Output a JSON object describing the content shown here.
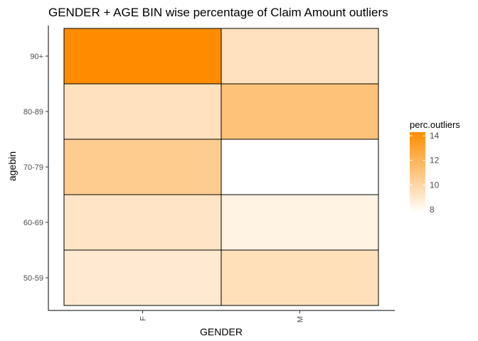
{
  "chart_data": {
    "type": "heatmap",
    "title": "GENDER + AGE BIN wise percentage of Claim Amount outliers",
    "xlabel": "GENDER",
    "ylabel": "agebin",
    "x_categories": [
      "F",
      "M"
    ],
    "y_categories": [
      "50-59",
      "60-69",
      "70-79",
      "80-89",
      "90+"
    ],
    "cells": [
      {
        "x": "F",
        "y": "50-59",
        "value": 8.9
      },
      {
        "x": "M",
        "y": "50-59",
        "value": 9.5
      },
      {
        "x": "F",
        "y": "60-69",
        "value": 9.2
      },
      {
        "x": "M",
        "y": "60-69",
        "value": 8.4
      },
      {
        "x": "F",
        "y": "70-79",
        "value": 10.6
      },
      {
        "x": "M",
        "y": "70-79",
        "value": 7.7
      },
      {
        "x": "F",
        "y": "80-89",
        "value": 9.4
      },
      {
        "x": "M",
        "y": "80-89",
        "value": 11.2
      },
      {
        "x": "F",
        "y": "90+",
        "value": 14.3
      },
      {
        "x": "M",
        "y": "90+",
        "value": 9.4
      }
    ],
    "legend": {
      "title": "perc.outliers",
      "ticks": [
        8,
        10,
        12,
        14
      ],
      "range": [
        7.7,
        14.3
      ],
      "color_low": "#ffffff",
      "color_high": "#ff8c00",
      "placement": "right"
    },
    "grid": false
  }
}
